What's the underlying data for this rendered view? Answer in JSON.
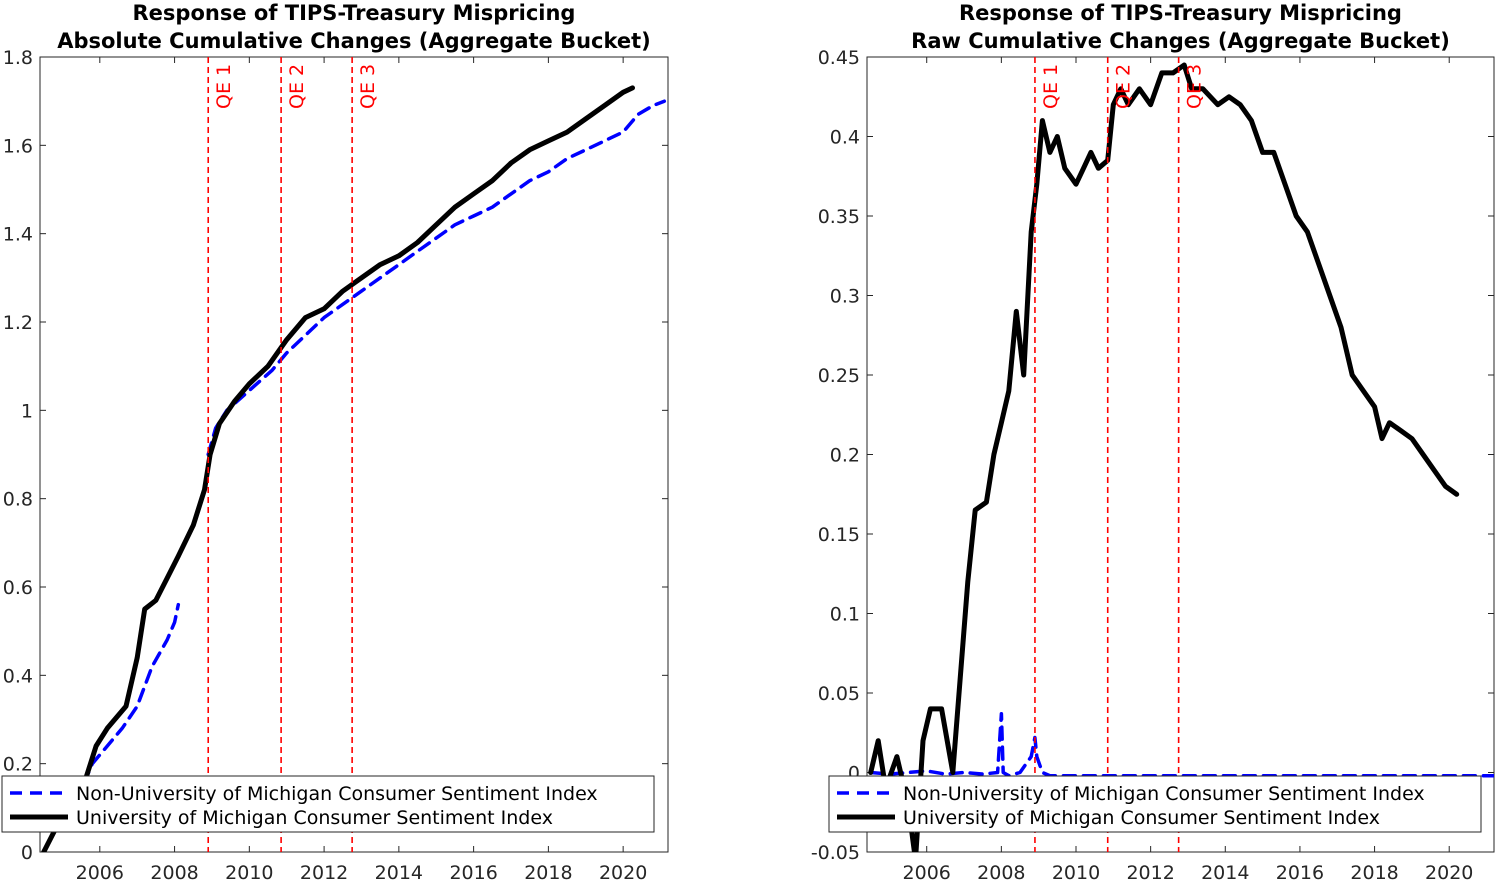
{
  "chart_data": [
    {
      "type": "line",
      "title": [
        "Response of TIPS-Treasury Mispricing",
        "Absolute Cumulative Changes (Aggregate Bucket)"
      ],
      "xlim": [
        2004.4,
        2021.2
      ],
      "ylim": [
        0,
        1.8
      ],
      "xticks": [
        2006,
        2008,
        2010,
        2012,
        2014,
        2016,
        2018,
        2020
      ],
      "yticks": [
        0,
        0.2,
        0.4,
        0.6,
        0.8,
        1,
        1.2,
        1.4,
        1.6,
        1.8
      ],
      "ytick_labels": [
        "0",
        "0.2",
        "0.4",
        "0.6",
        "0.8",
        "1",
        "1.2",
        "1.4",
        "1.6",
        "1.8"
      ],
      "vlines": [
        {
          "x": 2008.9,
          "label": "QE 1",
          "color": "#ff0000"
        },
        {
          "x": 2010.85,
          "label": "QE 2",
          "color": "#ff0000"
        },
        {
          "x": 2012.75,
          "label": "QE 3",
          "color": "#ff0000"
        }
      ],
      "legend": {
        "location": "bottom-left"
      },
      "series": [
        {
          "name": "Non-University of Michigan Consumer Sentiment Index",
          "color": "#0000ff",
          "style": "dashed",
          "x": [
            2004.5,
            2005.0,
            2005.5,
            2005.8,
            2006.2,
            2006.6,
            2007.0,
            2007.4,
            2007.8,
            2008.0,
            2008.1
          ],
          "y": [
            0.0,
            0.08,
            0.14,
            0.2,
            0.24,
            0.28,
            0.33,
            0.42,
            0.48,
            0.52,
            0.56
          ]
        },
        {
          "name": "Non-University of Michigan Consumer Sentiment Index",
          "color": "#0000ff",
          "style": "dashed",
          "x": [
            2008.9,
            2009.1,
            2009.4,
            2009.8,
            2010.2,
            2010.6,
            2011.0,
            2011.5,
            2012.0,
            2012.5,
            2013.0,
            2013.5,
            2014.0,
            2014.5,
            2015.0,
            2015.5,
            2016.0,
            2016.5,
            2017.0,
            2017.5,
            2018.0,
            2018.5,
            2019.0,
            2019.5,
            2020.0,
            2020.4,
            2020.8,
            2021.1
          ],
          "y": [
            0.9,
            0.96,
            1.0,
            1.03,
            1.06,
            1.09,
            1.13,
            1.17,
            1.21,
            1.24,
            1.27,
            1.3,
            1.33,
            1.36,
            1.39,
            1.42,
            1.44,
            1.46,
            1.49,
            1.52,
            1.54,
            1.57,
            1.59,
            1.61,
            1.63,
            1.67,
            1.69,
            1.7
          ]
        },
        {
          "name": "University of Michigan Consumer Sentiment Index",
          "color": "#000000",
          "style": "solid",
          "x": [
            2004.5,
            2004.8,
            2005.2,
            2005.6,
            2005.9,
            2006.2,
            2006.7,
            2007.0,
            2007.2,
            2007.5,
            2007.8,
            2008.1,
            2008.5,
            2008.8,
            2008.95,
            2009.2,
            2009.6,
            2010.0,
            2010.5,
            2011.0,
            2011.5,
            2012.0,
            2012.5,
            2013.0,
            2013.5,
            2014.0,
            2014.5,
            2015.0,
            2015.5,
            2016.0,
            2016.5,
            2017.0,
            2017.5,
            2018.0,
            2018.5,
            2019.0,
            2019.5,
            2020.0,
            2020.25
          ],
          "y": [
            0.0,
            0.05,
            0.1,
            0.16,
            0.24,
            0.28,
            0.33,
            0.44,
            0.55,
            0.57,
            0.62,
            0.67,
            0.74,
            0.82,
            0.9,
            0.97,
            1.02,
            1.06,
            1.1,
            1.16,
            1.21,
            1.23,
            1.27,
            1.3,
            1.33,
            1.35,
            1.38,
            1.42,
            1.46,
            1.49,
            1.52,
            1.56,
            1.59,
            1.61,
            1.63,
            1.66,
            1.69,
            1.72,
            1.73
          ]
        }
      ]
    },
    {
      "type": "line",
      "title": [
        "Response of TIPS-Treasury Mispricing",
        "Raw Cumulative Changes (Aggregate Bucket)"
      ],
      "xlim": [
        2004.4,
        2021.2
      ],
      "ylim": [
        -0.05,
        0.45
      ],
      "xticks": [
        2006,
        2008,
        2010,
        2012,
        2014,
        2016,
        2018,
        2020
      ],
      "yticks": [
        -0.05,
        0,
        0.05,
        0.1,
        0.15,
        0.2,
        0.25,
        0.3,
        0.35,
        0.4,
        0.45
      ],
      "ytick_labels": [
        "-0.05",
        "0",
        "0.05",
        "0.1",
        "0.15",
        "0.2",
        "0.25",
        "0.3",
        "0.35",
        "0.4",
        "0.45"
      ],
      "vlines": [
        {
          "x": 2008.9,
          "label": "QE 1",
          "color": "#ff0000"
        },
        {
          "x": 2010.85,
          "label": "QE 2",
          "color": "#ff0000"
        },
        {
          "x": 2012.75,
          "label": "QE 3",
          "color": "#ff0000"
        }
      ],
      "legend": {
        "location": "bottom-left"
      },
      "series": [
        {
          "name": "Non-University of Michigan Consumer Sentiment Index",
          "color": "#0000ff",
          "style": "dashed",
          "x": [
            2004.5,
            2005.0,
            2005.5,
            2006.0,
            2006.5,
            2007.0,
            2007.5,
            2007.9,
            2008.0,
            2008.05,
            2008.2,
            2008.5,
            2008.8,
            2008.9,
            2008.95,
            2009.1,
            2009.3,
            2021.1,
            2021.2
          ],
          "y": [
            0.0,
            -0.001,
            0.0,
            0.001,
            -0.001,
            0.0,
            -0.001,
            0.0,
            0.037,
            0.0,
            -0.002,
            0.0,
            0.01,
            0.022,
            0.01,
            0.0,
            -0.002,
            -0.002,
            -0.002
          ]
        },
        {
          "name": "University of Michigan Consumer Sentiment Index",
          "color": "#000000",
          "style": "solid",
          "x": [
            2004.5,
            2004.7,
            2004.9,
            2005.2,
            2005.5,
            2005.7,
            2005.9,
            2006.1,
            2006.4,
            2006.7,
            2006.9,
            2007.1,
            2007.3,
            2007.6,
            2007.8,
            2008.0,
            2008.2,
            2008.4,
            2008.6,
            2008.8,
            2008.95,
            2009.1,
            2009.3,
            2009.5,
            2009.7,
            2010.0,
            2010.2,
            2010.4,
            2010.6,
            2010.85,
            2011.0,
            2011.2,
            2011.4,
            2011.7,
            2012.0,
            2012.3,
            2012.6,
            2012.9,
            2013.1,
            2013.4,
            2013.8,
            2014.1,
            2014.4,
            2014.7,
            2015.0,
            2015.3,
            2015.6,
            2015.9,
            2016.2,
            2016.5,
            2016.8,
            2017.1,
            2017.4,
            2017.7,
            2018.0,
            2018.2,
            2018.4,
            2018.7,
            2019.0,
            2019.3,
            2019.6,
            2019.9,
            2020.2
          ],
          "y": [
            0.0,
            0.02,
            -0.01,
            0.01,
            -0.02,
            -0.055,
            0.02,
            0.04,
            0.04,
            0.0,
            0.06,
            0.12,
            0.165,
            0.17,
            0.2,
            0.22,
            0.24,
            0.29,
            0.25,
            0.34,
            0.37,
            0.41,
            0.39,
            0.4,
            0.38,
            0.37,
            0.38,
            0.39,
            0.38,
            0.385,
            0.42,
            0.43,
            0.42,
            0.43,
            0.42,
            0.44,
            0.44,
            0.445,
            0.43,
            0.43,
            0.42,
            0.425,
            0.42,
            0.41,
            0.39,
            0.39,
            0.37,
            0.35,
            0.34,
            0.32,
            0.3,
            0.28,
            0.25,
            0.24,
            0.23,
            0.21,
            0.22,
            0.215,
            0.21,
            0.2,
            0.19,
            0.18,
            0.175
          ]
        }
      ]
    }
  ],
  "colors": {
    "qe_line": "#ff0000",
    "non_umich": "#0000ff",
    "umich": "#000000",
    "axis": "#262626"
  }
}
